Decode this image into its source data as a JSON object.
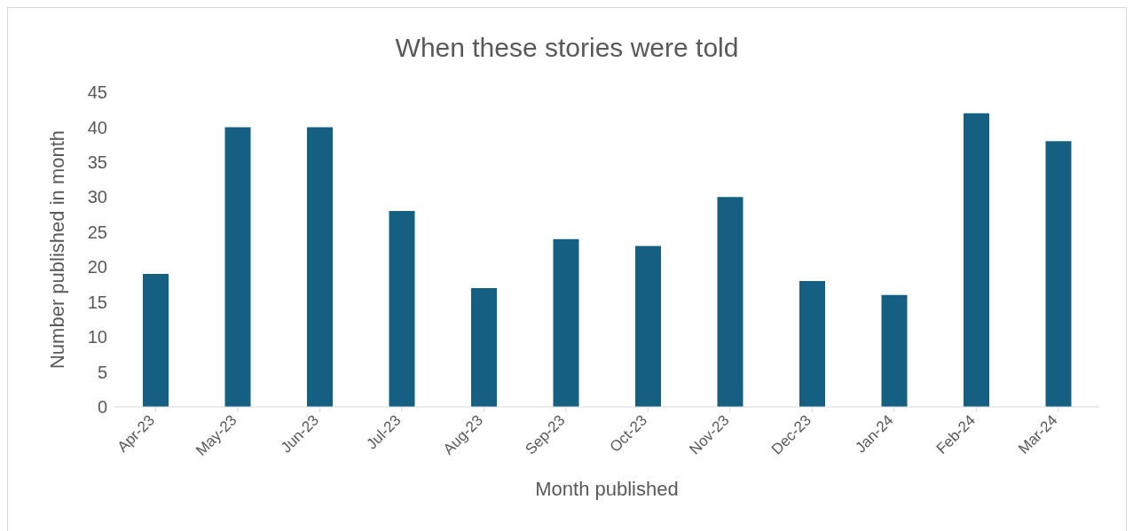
{
  "chart_data": {
    "type": "bar",
    "title": "When these stories were told",
    "xlabel": "Month published",
    "ylabel": "Number published in month",
    "categories": [
      "Apr-23",
      "May-23",
      "Jun-23",
      "Jul-23",
      "Aug-23",
      "Sep-23",
      "Oct-23",
      "Nov-23",
      "Dec-23",
      "Jan-24",
      "Feb-24",
      "Mar-24"
    ],
    "values": [
      19,
      40,
      40,
      28,
      17,
      24,
      23,
      30,
      18,
      16,
      42,
      38
    ],
    "color": "#156082",
    "ylim": [
      0,
      45
    ],
    "yticks": [
      0,
      5,
      10,
      15,
      20,
      25,
      30,
      35,
      40,
      45
    ],
    "grid": false,
    "legend": false
  }
}
